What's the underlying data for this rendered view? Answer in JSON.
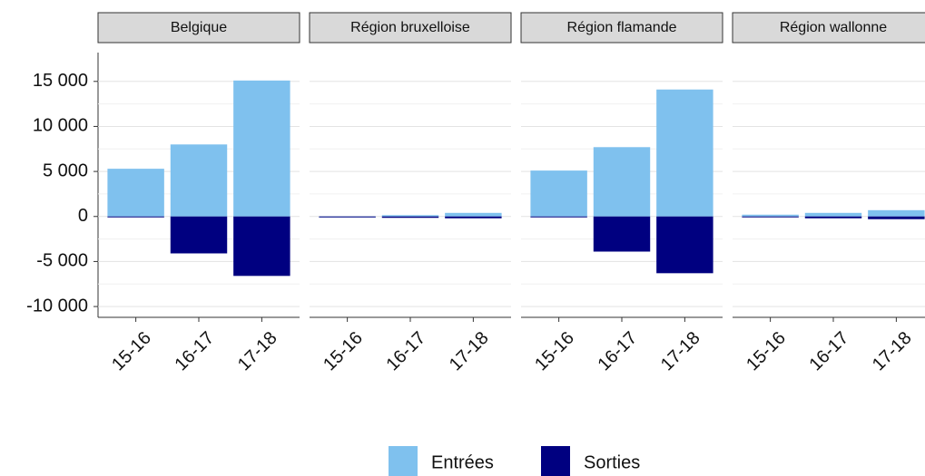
{
  "chart_data": {
    "type": "bar",
    "series": [
      {
        "name": "Entrées",
        "color": "#7fc1ee"
      },
      {
        "name": "Sorties",
        "color": "#000080"
      }
    ],
    "ylim": [
      -11200,
      18200
    ],
    "yticks": [
      {
        "value": -10000,
        "label": "-10 000"
      },
      {
        "value": -5000,
        "label": "-5 000"
      },
      0,
      {
        "value": 5000,
        "label": "5 000"
      },
      {
        "value": 10000,
        "label": "10 000"
      },
      {
        "value": 15000,
        "label": "15 000"
      }
    ],
    "grid": true,
    "facets": [
      {
        "title": "Belgique",
        "categories": [
          "15-16",
          "16-17",
          "17-18"
        ],
        "values": [
          [
            5300,
            8000,
            15100
          ],
          [
            0,
            -4100,
            -6600
          ]
        ]
      },
      {
        "title": "Région bruxelloise",
        "categories": [
          "15-16",
          "16-17",
          "17-18"
        ],
        "values": [
          [
            0,
            150,
            400
          ],
          [
            0,
            -150,
            -200
          ]
        ]
      },
      {
        "title": "Région flamande",
        "categories": [
          "15-16",
          "16-17",
          "17-18"
        ],
        "values": [
          [
            5100,
            7700,
            14100
          ],
          [
            0,
            -3900,
            -6300
          ]
        ]
      },
      {
        "title": "Région wallonne",
        "categories": [
          "15-16",
          "16-17",
          "17-18"
        ],
        "values": [
          [
            200,
            400,
            700
          ],
          [
            0,
            -200,
            -300
          ]
        ]
      }
    ]
  }
}
